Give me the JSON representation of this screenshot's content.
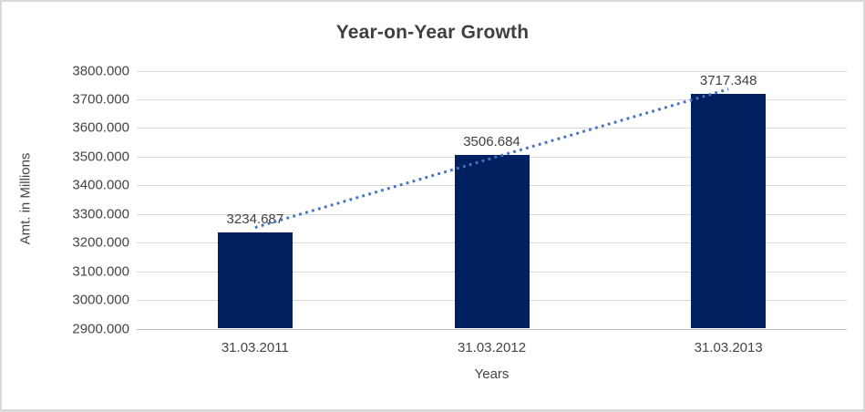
{
  "frame": {
    "background": "#ffffff",
    "border_color": "#d9d9d9"
  },
  "chart_data": {
    "type": "bar",
    "title": "Year-on-Year Growth",
    "categories": [
      "31.03.2011",
      "31.03.2012",
      "31.03.2013"
    ],
    "values": [
      3234.687,
      3506.684,
      3717.348
    ],
    "data_labels": [
      "3234.687",
      "3506.684",
      "3717.348"
    ],
    "xlabel": "Years",
    "ylabel": "Amt. in Millions",
    "ylim": [
      2900,
      3800
    ],
    "ytick_step": 100,
    "ytick_labels": [
      "3800.000",
      "3700.000",
      "3600.000",
      "3500.000",
      "3400.000",
      "3300.000",
      "3200.000",
      "3100.000",
      "3000.000",
      "2900.000"
    ],
    "grid": true,
    "legend": false,
    "bar_color": "#002060",
    "gridline_color": "#d9d9d9",
    "axis_line_color": "#c0c0c0",
    "text_color": "#404040",
    "trendline": {
      "type": "linear",
      "style": "dotted",
      "color": "#4472c4"
    }
  }
}
